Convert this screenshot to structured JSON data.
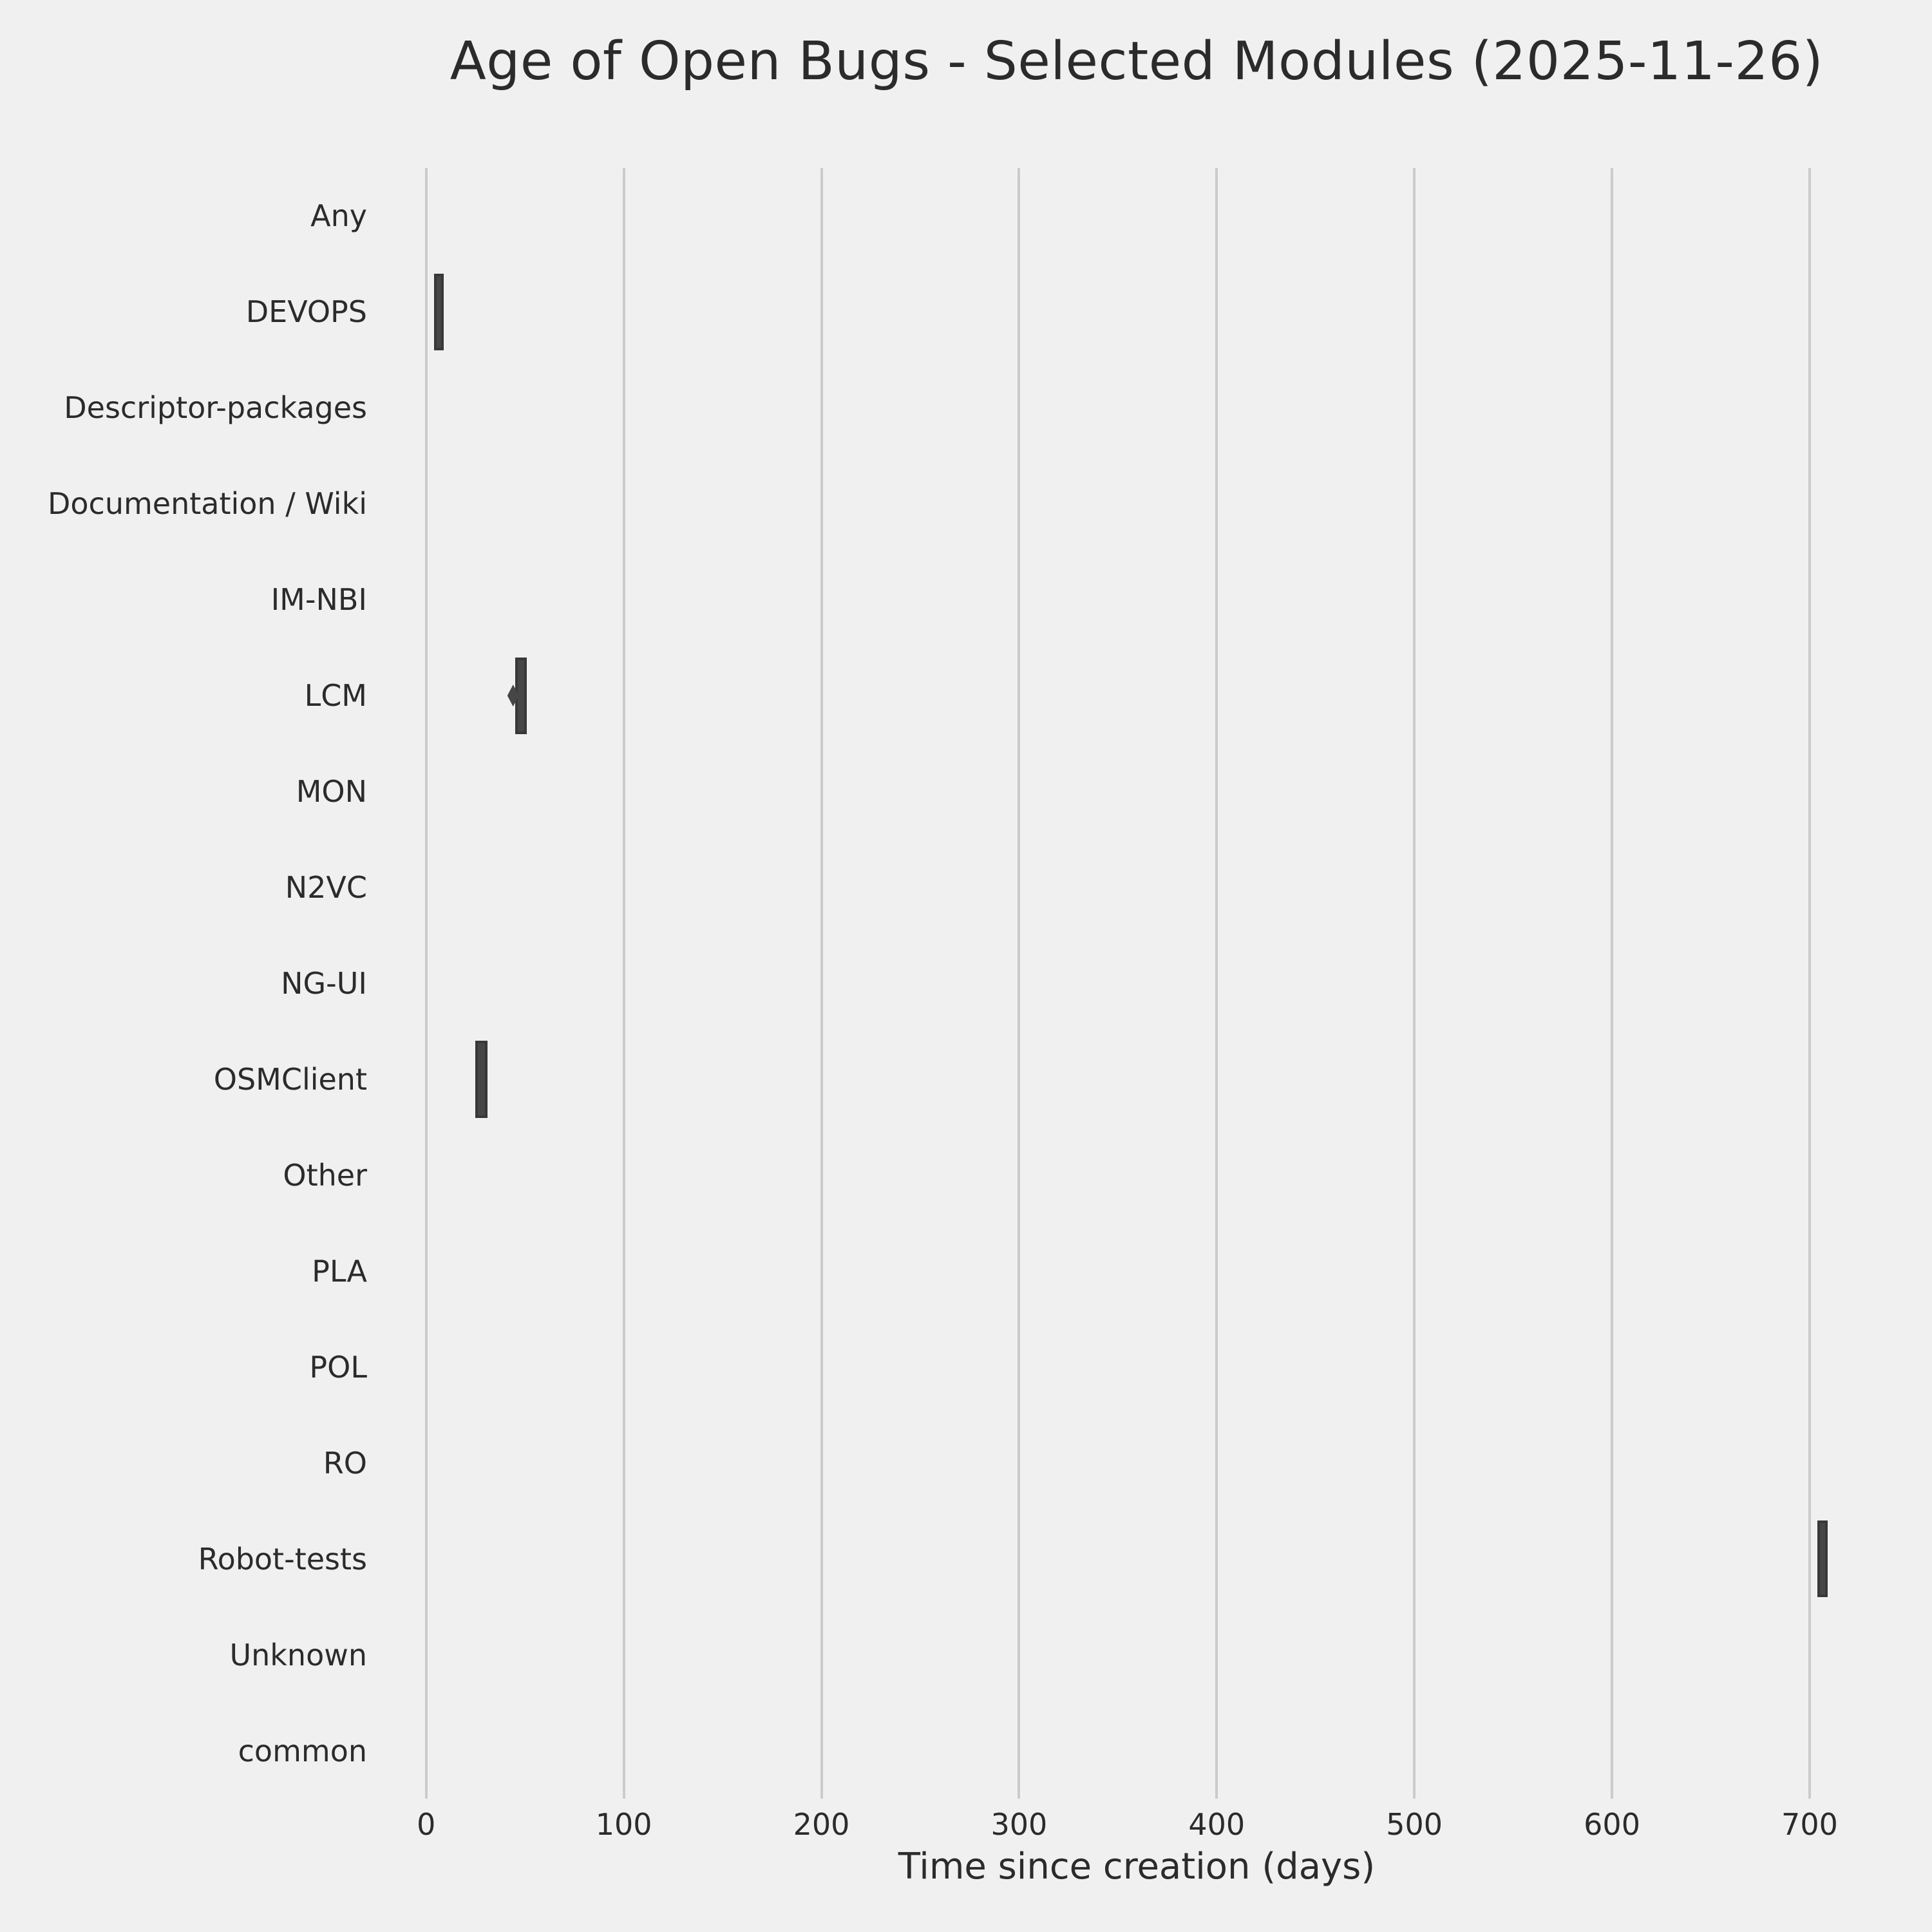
{
  "chart_data": {
    "type": "boxplot",
    "orientation": "horizontal",
    "title": "Age of Open Bugs - Selected Modules (2025-11-26)",
    "xlabel": "Time since creation (days)",
    "ylabel": "",
    "categories": [
      "Any",
      "DEVOPS",
      "Descriptor-packages",
      "Documentation / Wiki",
      "IM-NBI",
      "LCM",
      "MON",
      "N2VC",
      "NG-UI",
      "OSMClient",
      "Other",
      "PLA",
      "POL",
      "RO",
      "Robot-tests",
      "Unknown",
      "common"
    ],
    "x_ticks": [
      0,
      100,
      200,
      300,
      400,
      500,
      600,
      700
    ],
    "x_tick_labels": [
      "0",
      "100",
      "200",
      "300",
      "400",
      "500",
      "600",
      "700"
    ],
    "xlim": [
      -25,
      744
    ],
    "grid": true,
    "legend": false,
    "boxes": [
      {
        "category": "DEVOPS",
        "q1": 4,
        "q3": 9,
        "outliers": []
      },
      {
        "category": "LCM",
        "q1": 45,
        "q3": 51,
        "outliers": [
          44
        ]
      },
      {
        "category": "OSMClient",
        "q1": 25,
        "q3": 31,
        "outliers": []
      },
      {
        "category": "Robot-tests",
        "q1": 704,
        "q3": 709,
        "outliers": []
      }
    ],
    "outlier_marker": "thin-diamond",
    "colors": {
      "background": "#f0f0f0",
      "grid": "#cbcbcb",
      "box_fill": "#464646",
      "box_edge": "#383838",
      "text": "#2b2b2b"
    }
  }
}
